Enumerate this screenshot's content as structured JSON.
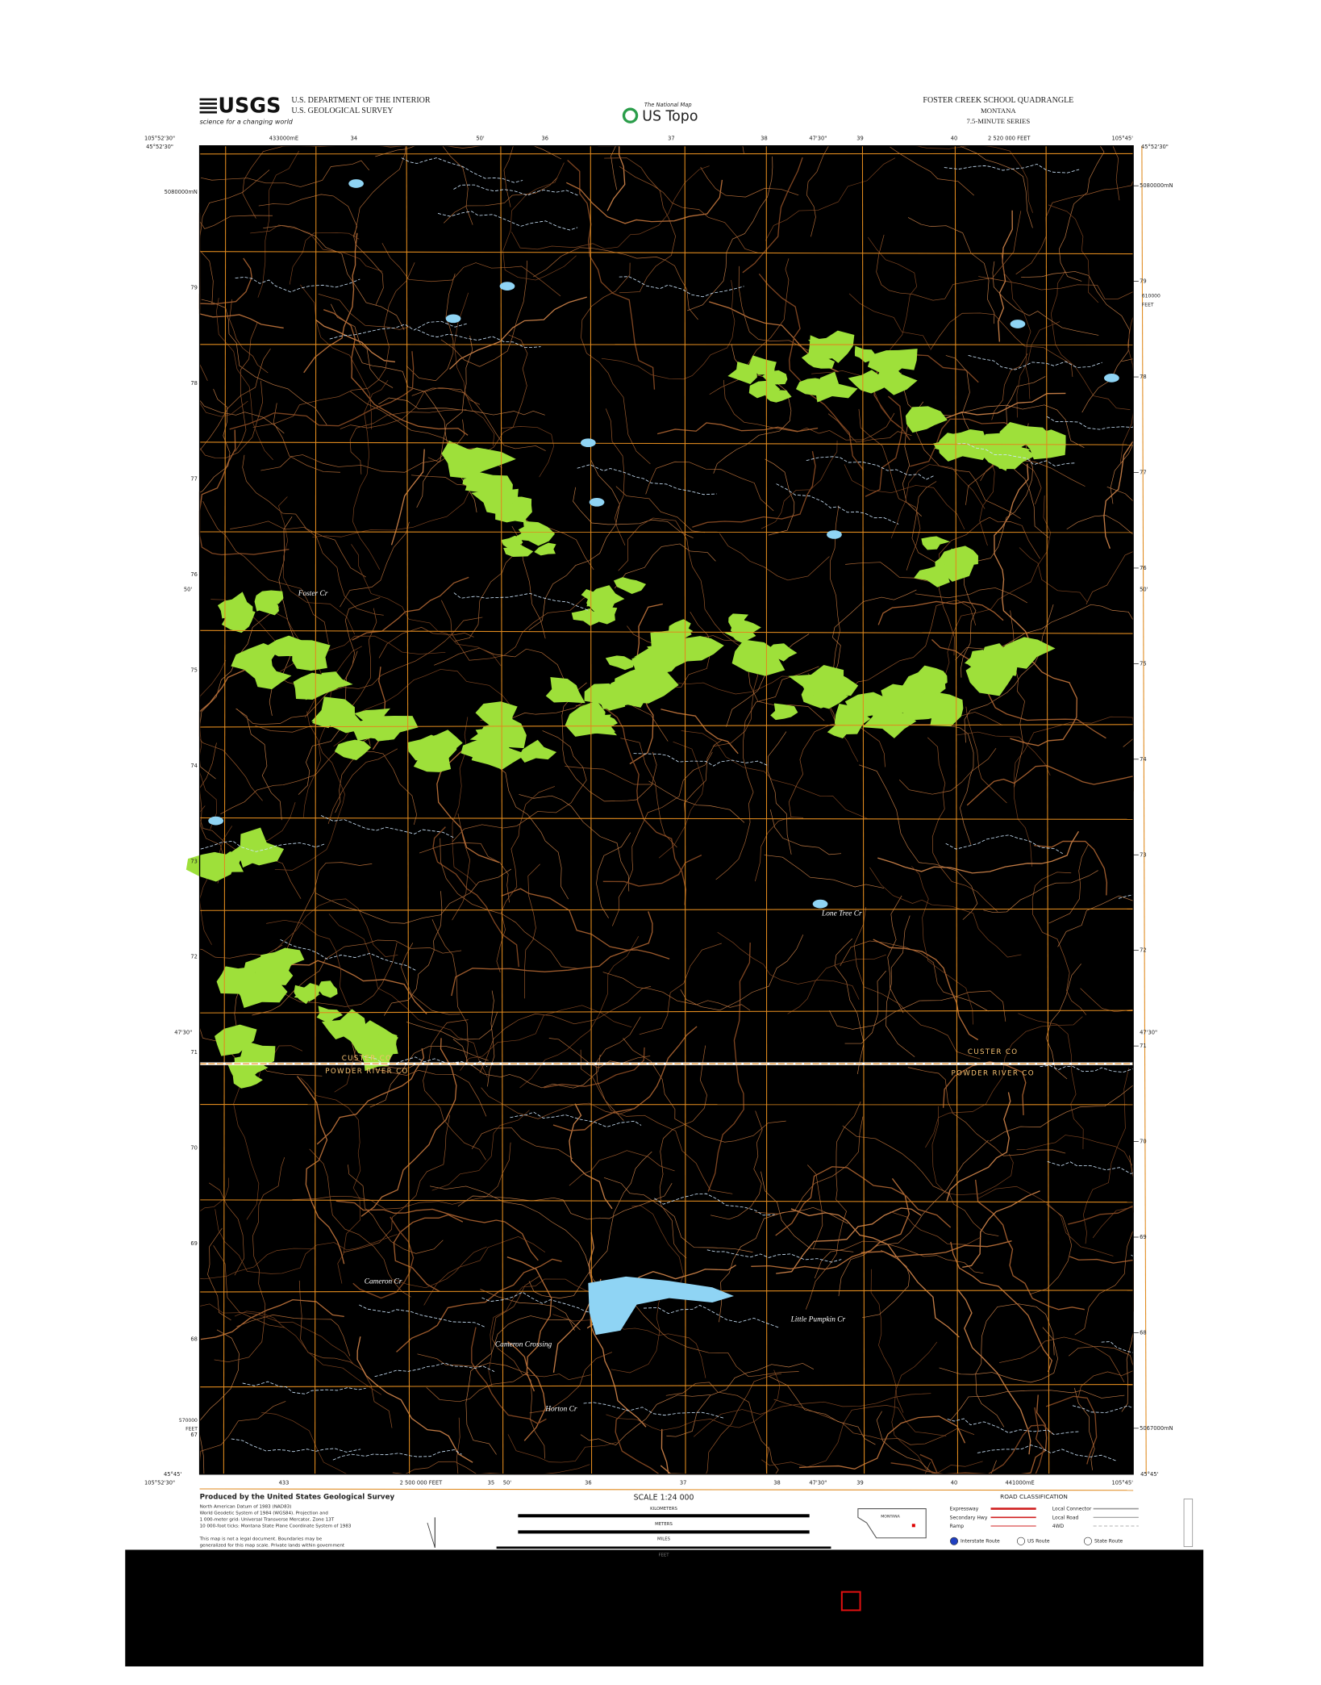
{
  "header": {
    "logo": "USGS",
    "logo_tagline": "science for a changing world",
    "agency_lines": [
      "U.S. DEPARTMENT OF THE INTERIOR",
      "U.S. GEOLOGICAL SURVEY"
    ],
    "center_logo_small": "The National Map",
    "center_logo": "US Topo",
    "quad_title": "FOSTER CREEK SCHOOL QUADRANGLE",
    "state": "MONTANA",
    "series": "7.5-MINUTE SERIES"
  },
  "map": {
    "top_labels": [
      "105°52'30\"",
      "433000mE",
      "34",
      "50'",
      "36",
      "37",
      "38",
      "47'30\"",
      "39",
      "40",
      "2 520 000 FEET",
      "105°45'"
    ],
    "bottom_labels": [
      "105°52'30\"",
      "433",
      "2 500 000 FEET",
      "35",
      "50'",
      "36",
      "37",
      "38",
      "47'30\"",
      "39",
      "40",
      "441000mE",
      "105°45'"
    ],
    "corner_lat_top": "45°52'30\"",
    "corner_lat_bottom": "45°45'",
    "right_northings": [
      "5080000mN",
      "79",
      "78",
      "77",
      "76",
      "75",
      "74",
      "73",
      "72",
      "71",
      "70",
      "69",
      "68",
      "5067000mN"
    ],
    "left_northings": [
      "5080000mN",
      "79",
      "78",
      "77",
      "76",
      "75",
      "74",
      "73",
      "72",
      "71",
      "70",
      "69",
      "68",
      "67"
    ],
    "side_minutes": [
      "50'",
      "47'30\""
    ],
    "right_feet": [
      "610000",
      "FEET"
    ],
    "left_feet": [
      "570000",
      "FEET"
    ],
    "place_labels": [
      "Cameron Crossing",
      "Little Pumpkin Cr",
      "Lone Tree Cr",
      "Foster Cr",
      "Cameron Cr",
      "Horton Cr"
    ],
    "county_labels": [
      "CUSTER CO",
      "POWDER RIVER CO",
      "CUSTER CO",
      "POWDER RIVER CO"
    ]
  },
  "footer": {
    "producer": "Produced by the United States Geological Survey",
    "notes": [
      "North American Datum of 1983 (NAD83)",
      "World Geodetic System of 1984 (WGS84). Projection and",
      "1 000-meter grid: Universal Transverse Mercator, Zone 13T",
      "10 000-foot ticks: Montana State Plane Coordinate System of 1983"
    ],
    "disclaimer": [
      "This map is not a legal document. Boundaries may be",
      "generalized for this map scale. Private lands within government"
    ],
    "scale": "SCALE 1:24 000",
    "scale_units": [
      "KILOMETERS",
      "METERS",
      "MILES",
      "FEET"
    ],
    "inset_state": "MONTANA",
    "road_title": "ROAD CLASSIFICATION",
    "road_classes": [
      "Expressway",
      "Secondary Hwy",
      "Ramp",
      "Local Connector",
      "Local Road",
      "4WD"
    ],
    "route_types": [
      "Interstate Route",
      "US Route",
      "State Route"
    ]
  }
}
